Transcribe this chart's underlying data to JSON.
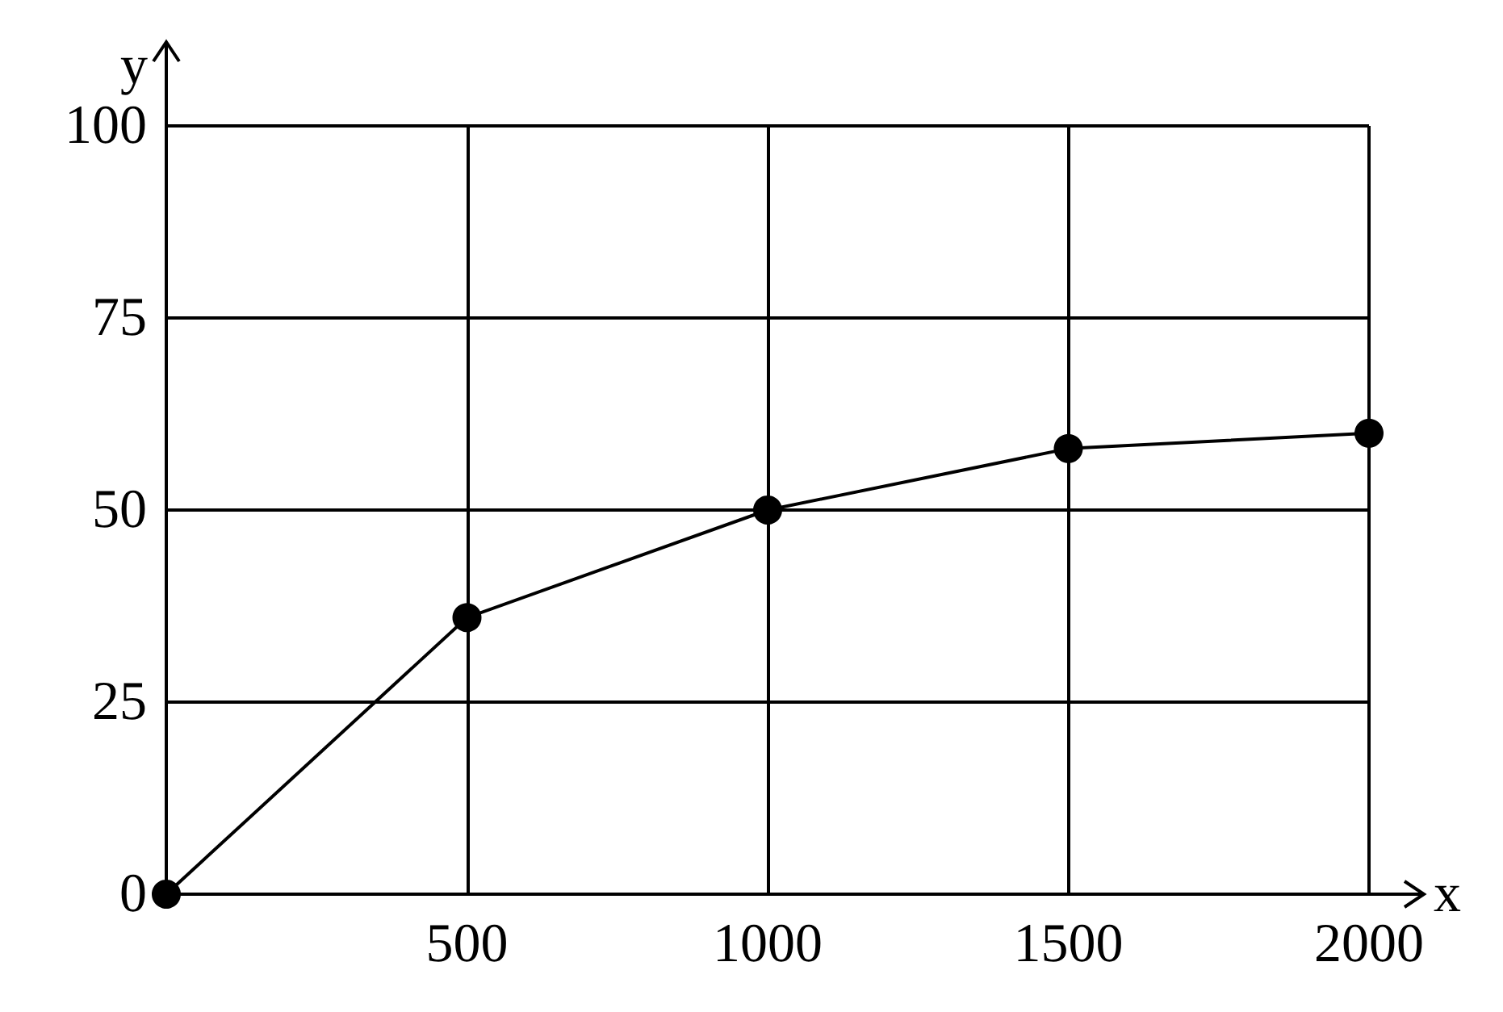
{
  "chart_data": {
    "type": "line",
    "xlabel": "x",
    "ylabel": "y",
    "x": [
      0,
      500,
      1000,
      1500,
      2000
    ],
    "series": [
      {
        "color": "#000000",
        "values": [
          0,
          36,
          50,
          58,
          60
        ]
      }
    ],
    "xlim": [
      0,
      2000
    ],
    "ylim": [
      0,
      100
    ],
    "xticks": [
      {
        "value": 0,
        "label": null
      },
      500,
      1000,
      1500,
      2000
    ],
    "yticks": [
      0,
      25,
      50,
      75,
      100
    ],
    "grid": true,
    "marker": "circle",
    "line_style": "solid"
  }
}
